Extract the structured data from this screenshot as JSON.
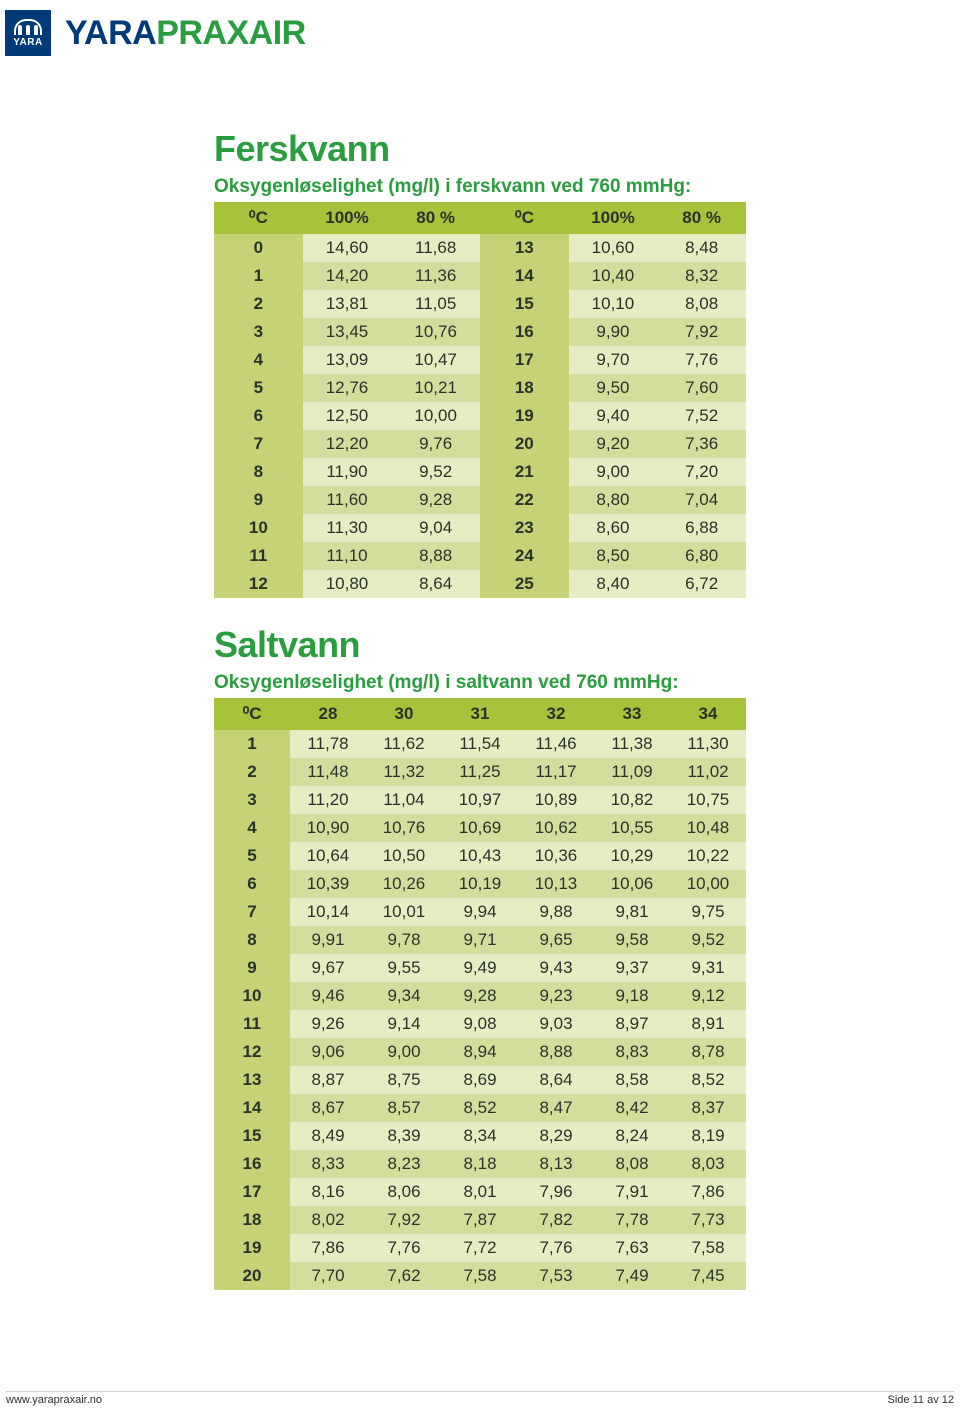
{
  "brand": {
    "badge_text": "YARA",
    "word_a": "YARA",
    "word_b": "PRAXAIR"
  },
  "colors": {
    "brand_blue": "#003a78",
    "brand_green": "#2a9d3e",
    "header_bg": "#a8c23c",
    "row_odd_bg": "#e6ecc4",
    "row_even_bg": "#d4de9c",
    "label_col_bg": "#c7d277",
    "text": "#29332b"
  },
  "ferskvann": {
    "title": "Ferskvann",
    "subtitle": "Oksygenløselighet (mg/l) i ferskvann ved 760 mmHg:",
    "headers": [
      "⁰C",
      "100%",
      "80 %",
      "⁰C",
      "100%",
      "80 %"
    ],
    "rows": [
      [
        "0",
        "14,60",
        "11,68",
        "13",
        "10,60",
        "8,48"
      ],
      [
        "1",
        "14,20",
        "11,36",
        "14",
        "10,40",
        "8,32"
      ],
      [
        "2",
        "13,81",
        "11,05",
        "15",
        "10,10",
        "8,08"
      ],
      [
        "3",
        "13,45",
        "10,76",
        "16",
        "9,90",
        "7,92"
      ],
      [
        "4",
        "13,09",
        "10,47",
        "17",
        "9,70",
        "7,76"
      ],
      [
        "5",
        "12,76",
        "10,21",
        "18",
        "9,50",
        "7,60"
      ],
      [
        "6",
        "12,50",
        "10,00",
        "19",
        "9,40",
        "7,52"
      ],
      [
        "7",
        "12,20",
        "9,76",
        "20",
        "9,20",
        "7,36"
      ],
      [
        "8",
        "11,90",
        "9,52",
        "21",
        "9,00",
        "7,20"
      ],
      [
        "9",
        "11,60",
        "9,28",
        "22",
        "8,80",
        "7,04"
      ],
      [
        "10",
        "11,30",
        "9,04",
        "23",
        "8,60",
        "6,88"
      ],
      [
        "11",
        "11,10",
        "8,88",
        "24",
        "8,50",
        "6,80"
      ],
      [
        "12",
        "10,80",
        "8,64",
        "25",
        "8,40",
        "6,72"
      ]
    ]
  },
  "saltvann": {
    "title": "Saltvann",
    "subtitle": "Oksygenløselighet (mg/l) i saltvann ved 760 mmHg:",
    "headers": [
      "⁰C",
      "28",
      "30",
      "31",
      "32",
      "33",
      "34"
    ],
    "rows": [
      [
        "1",
        "11,78",
        "11,62",
        "11,54",
        "11,46",
        "11,38",
        "11,30"
      ],
      [
        "2",
        "11,48",
        "11,32",
        "11,25",
        "11,17",
        "11,09",
        "11,02"
      ],
      [
        "3",
        "11,20",
        "11,04",
        "10,97",
        "10,89",
        "10,82",
        "10,75"
      ],
      [
        "4",
        "10,90",
        "10,76",
        "10,69",
        "10,62",
        "10,55",
        "10,48"
      ],
      [
        "5",
        "10,64",
        "10,50",
        "10,43",
        "10,36",
        "10,29",
        "10,22"
      ],
      [
        "6",
        "10,39",
        "10,26",
        "10,19",
        "10,13",
        "10,06",
        "10,00"
      ],
      [
        "7",
        "10,14",
        "10,01",
        "9,94",
        "9,88",
        "9,81",
        "9,75"
      ],
      [
        "8",
        "9,91",
        "9,78",
        "9,71",
        "9,65",
        "9,58",
        "9,52"
      ],
      [
        "9",
        "9,67",
        "9,55",
        "9,49",
        "9,43",
        "9,37",
        "9,31"
      ],
      [
        "10",
        "9,46",
        "9,34",
        "9,28",
        "9,23",
        "9,18",
        "9,12"
      ],
      [
        "11",
        "9,26",
        "9,14",
        "9,08",
        "9,03",
        "8,97",
        "8,91"
      ],
      [
        "12",
        "9,06",
        "9,00",
        "8,94",
        "8,88",
        "8,83",
        "8,78"
      ],
      [
        "13",
        "8,87",
        "8,75",
        "8,69",
        "8,64",
        "8,58",
        "8,52"
      ],
      [
        "14",
        "8,67",
        "8,57",
        "8,52",
        "8,47",
        "8,42",
        "8,37"
      ],
      [
        "15",
        "8,49",
        "8,39",
        "8,34",
        "8,29",
        "8,24",
        "8,19"
      ],
      [
        "16",
        "8,33",
        "8,23",
        "8,18",
        "8,13",
        "8,08",
        "8,03"
      ],
      [
        "17",
        "8,16",
        "8,06",
        "8,01",
        "7,96",
        "7,91",
        "7,86"
      ],
      [
        "18",
        "8,02",
        "7,92",
        "7,87",
        "7,82",
        "7,78",
        "7,73"
      ],
      [
        "19",
        "7,86",
        "7,76",
        "7,72",
        "7,76",
        "7,63",
        "7,58"
      ],
      [
        "20",
        "7,70",
        "7,62",
        "7,58",
        "7,53",
        "7,49",
        "7,45"
      ]
    ]
  },
  "footer": {
    "url": "www.yarapraxair.no",
    "page": "Side 11 av 12"
  }
}
